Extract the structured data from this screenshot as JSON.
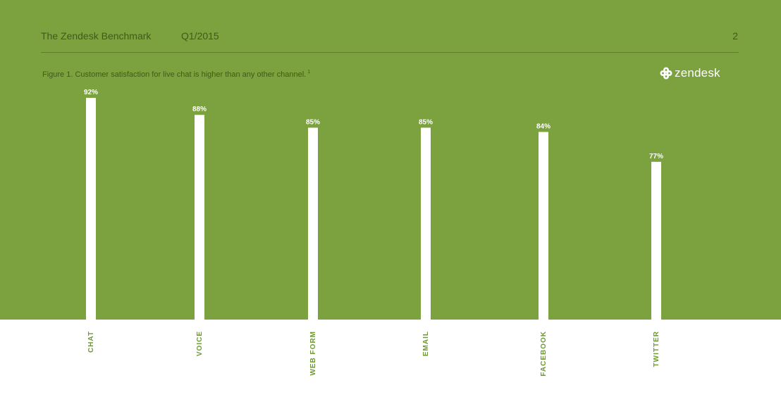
{
  "header": {
    "title": "The Zendesk Benchmark",
    "period": "Q1/2015",
    "page_number": "2"
  },
  "caption": {
    "text": "Figure 1. Customer satisfaction for live chat is higher than any other channel.",
    "footnote": "1"
  },
  "logo": {
    "text": "zendesk",
    "icon": "zendesk-knot-icon"
  },
  "colors": {
    "background": "#7ba23f",
    "bar": "#ffffff",
    "category_label": "#6d9a30",
    "header_text": "#3f5a1b"
  },
  "chart_data": {
    "type": "bar",
    "title": "",
    "xlabel": "",
    "ylabel": "",
    "categories": [
      "CHAT",
      "VOICE",
      "WEB FORM",
      "EMAIL",
      "FACEBOOK",
      "TWITTER"
    ],
    "values": [
      92,
      88,
      85,
      85,
      84,
      77
    ],
    "value_labels": [
      "92%",
      "88%",
      "85%",
      "85%",
      "84%",
      "77%"
    ],
    "ylim": [
      40,
      92
    ],
    "grid": false,
    "legend": "none"
  }
}
